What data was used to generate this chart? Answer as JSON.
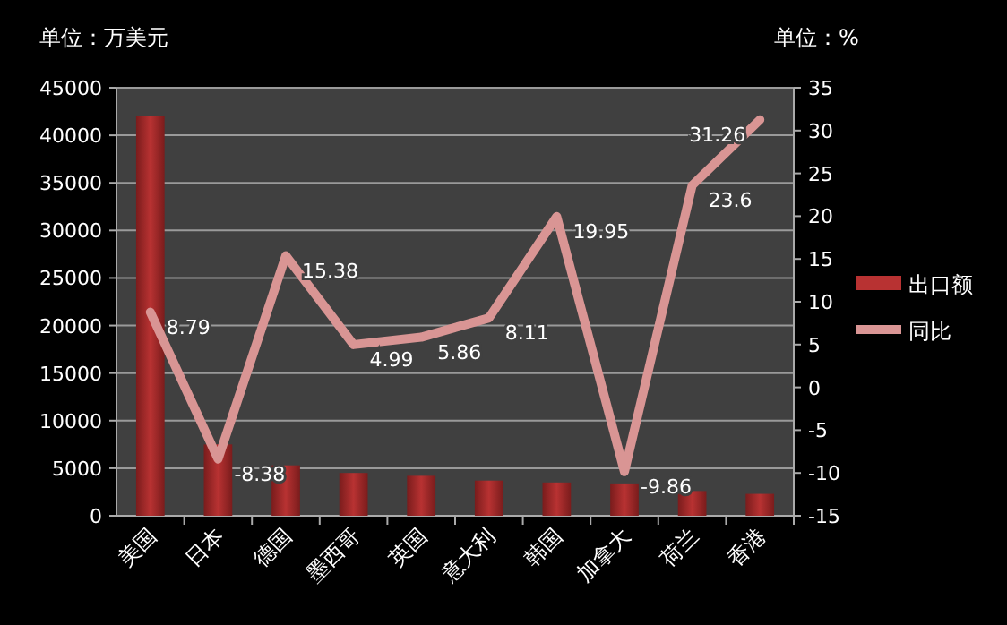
{
  "chart_data": {
    "type": "bar",
    "ylabel": "单位：万美元",
    "y2label": "单位：%",
    "categories": [
      "美国",
      "日本",
      "德国",
      "墨西哥",
      "英国",
      "意大利",
      "韩国",
      "加拿大",
      "荷兰",
      "香港"
    ],
    "series": [
      {
        "name": "出口额",
        "color": "#b83232",
        "values": [
          42000,
          7500,
          5300,
          4500,
          4200,
          3700,
          3500,
          3400,
          2600,
          2300
        ]
      },
      {
        "name": "同比",
        "type": "line",
        "axis": "y2",
        "color": "#d99594",
        "values": [
          8.79,
          -8.38,
          15.38,
          4.99,
          5.86,
          8.11,
          19.95,
          -9.86,
          23.6,
          31.26
        ],
        "value_labels": [
          "8.79",
          "-8.38",
          "15.38",
          "4.99",
          "5.86",
          "8.11",
          "19.95",
          "-9.86",
          "23.6",
          "31.26"
        ]
      }
    ],
    "ylim": [
      0,
      45000
    ],
    "yticks": [
      0,
      5000,
      10000,
      15000,
      20000,
      25000,
      30000,
      35000,
      40000,
      45000
    ],
    "y2lim": [
      -15,
      35
    ],
    "y2ticks": [
      -15,
      -10,
      -5,
      0,
      5,
      10,
      15,
      20,
      25,
      30,
      35
    ],
    "grid": "y",
    "legend": "right"
  }
}
